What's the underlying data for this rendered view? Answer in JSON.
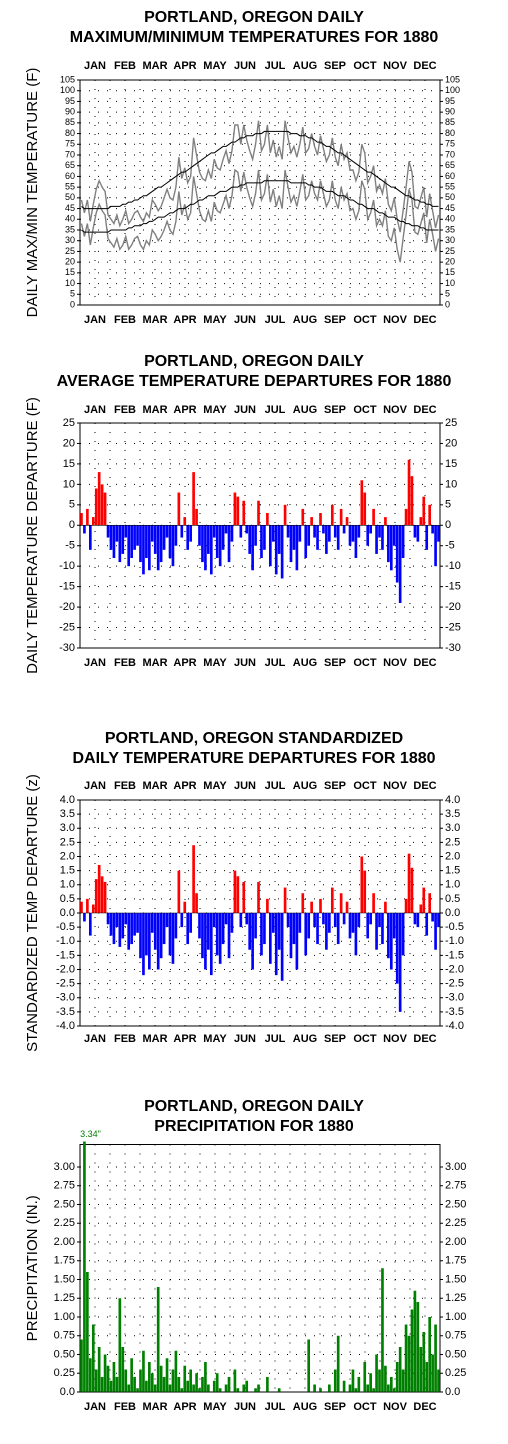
{
  "chart_data": [
    {
      "type": "line",
      "title": [
        "PORTLAND, OREGON DAILY",
        "MAXIMUM/MINIMUM TEMPERATURES FOR 1880"
      ],
      "y_label": "DAILY MAX/MIN TEMPERATURE (F)",
      "months": [
        "JAN",
        "FEB",
        "MAR",
        "APR",
        "MAY",
        "JUN",
        "JUL",
        "AUG",
        "SEP",
        "OCT",
        "NOV",
        "DEC"
      ],
      "month_rows": [
        "top",
        "bottom"
      ],
      "ylim": [
        0,
        105
      ],
      "yticks": [
        0,
        5,
        10,
        15,
        20,
        25,
        30,
        35,
        40,
        45,
        50,
        55,
        60,
        65,
        70,
        75,
        80,
        85,
        90,
        95,
        100,
        105
      ],
      "grid": true,
      "series": [
        {
          "color": "#808080",
          "values": [
            49,
            43,
            49,
            39,
            47,
            54,
            58,
            55,
            53,
            42,
            40,
            38,
            42,
            37,
            40,
            44,
            38,
            40,
            43,
            44,
            41,
            39,
            43,
            41,
            49,
            47,
            44,
            46,
            50,
            54,
            50,
            49,
            55,
            69,
            59,
            64,
            57,
            60,
            78,
            70,
            62,
            59,
            58,
            63,
            59,
            68,
            64,
            63,
            68,
            72,
            66,
            72,
            84,
            84,
            75,
            84,
            77,
            72,
            68,
            75,
            86,
            72,
            75,
            84,
            71,
            77,
            69,
            74,
            68,
            86,
            78,
            71,
            74,
            69,
            75,
            83,
            71,
            73,
            80,
            74,
            70,
            79,
            73,
            67,
            70,
            78,
            69,
            65,
            75,
            68,
            71,
            63,
            63,
            58,
            62,
            75,
            71,
            57,
            60,
            65,
            53,
            56,
            52,
            59,
            47,
            44,
            50,
            40,
            34,
            44,
            55,
            67,
            62,
            46,
            45,
            50,
            55,
            41,
            52,
            44,
            36,
            42
          ]
        },
        {
          "color": "#808080",
          "values": [
            38,
            32,
            38,
            28,
            36,
            43,
            47,
            44,
            42,
            31,
            29,
            27,
            31,
            26,
            28,
            32,
            26,
            28,
            31,
            32,
            28,
            26,
            30,
            28,
            35,
            33,
            30,
            32,
            35,
            39,
            35,
            33,
            39,
            53,
            42,
            47,
            40,
            43,
            60,
            52,
            44,
            40,
            39,
            44,
            39,
            48,
            44,
            43,
            47,
            51,
            45,
            51,
            63,
            62,
            53,
            62,
            55,
            50,
            46,
            52,
            63,
            49,
            52,
            61,
            48,
            54,
            46,
            51,
            45,
            63,
            55,
            48,
            51,
            46,
            53,
            61,
            49,
            51,
            58,
            52,
            49,
            58,
            52,
            46,
            49,
            58,
            49,
            45,
            55,
            49,
            52,
            44,
            45,
            40,
            44,
            58,
            54,
            40,
            43,
            49,
            37,
            40,
            37,
            44,
            32,
            30,
            36,
            26,
            20,
            31,
            42,
            54,
            49,
            34,
            33,
            38,
            43,
            29,
            40,
            33,
            25,
            31
          ]
        },
        {
          "color": "#000000",
          "values": [
            46,
            45,
            45,
            45,
            45,
            45,
            45,
            45,
            45,
            45,
            46,
            46,
            46,
            46,
            47,
            47,
            48,
            48,
            49,
            49,
            50,
            51,
            51,
            52,
            53,
            54,
            55,
            55,
            56,
            57,
            58,
            59,
            60,
            61,
            62,
            62,
            63,
            64,
            65,
            66,
            67,
            68,
            69,
            70,
            71,
            71,
            72,
            73,
            74,
            74,
            75,
            76,
            76,
            77,
            78,
            78,
            79,
            79,
            79,
            80,
            80,
            80,
            81,
            81,
            81,
            81,
            81,
            81,
            81,
            81,
            81,
            80,
            80,
            80,
            79,
            79,
            79,
            78,
            78,
            77,
            76,
            76,
            75,
            74,
            74,
            73,
            72,
            71,
            71,
            70,
            69,
            68,
            67,
            66,
            65,
            64,
            63,
            62,
            62,
            61,
            60,
            59,
            58,
            57,
            56,
            55,
            55,
            54,
            53,
            52,
            51,
            51,
            50,
            49,
            49,
            48,
            48,
            47,
            47,
            46,
            46,
            46
          ]
        },
        {
          "color": "#000000",
          "values": [
            35,
            34,
            34,
            34,
            34,
            34,
            34,
            34,
            34,
            34,
            35,
            35,
            35,
            35,
            35,
            35,
            36,
            36,
            37,
            37,
            37,
            38,
            38,
            39,
            39,
            40,
            41,
            41,
            41,
            42,
            43,
            43,
            44,
            45,
            45,
            45,
            46,
            47,
            47,
            48,
            49,
            49,
            50,
            51,
            51,
            51,
            52,
            53,
            53,
            53,
            54,
            55,
            55,
            55,
            56,
            56,
            57,
            57,
            57,
            57,
            57,
            57,
            58,
            58,
            58,
            58,
            58,
            58,
            58,
            58,
            58,
            57,
            57,
            57,
            57,
            57,
            57,
            56,
            56,
            55,
            55,
            55,
            54,
            53,
            53,
            53,
            52,
            51,
            51,
            51,
            50,
            49,
            49,
            48,
            47,
            47,
            46,
            45,
            45,
            45,
            44,
            43,
            43,
            42,
            41,
            41,
            41,
            40,
            39,
            39,
            38,
            38,
            37,
            37,
            37,
            36,
            36,
            35,
            35,
            35,
            35,
            35
          ]
        }
      ]
    },
    {
      "type": "bar",
      "title": [
        "PORTLAND, OREGON DAILY",
        "AVERAGE TEMPERATURE DEPARTURES FOR 1880"
      ],
      "y_label": "DAILY TEMPERATURE DEPARTURE (F)",
      "months": [
        "JAN",
        "FEB",
        "MAR",
        "APR",
        "MAY",
        "JUN",
        "JUL",
        "AUG",
        "SEP",
        "OCT",
        "NOV",
        "DEC"
      ],
      "month_rows": [
        "top",
        "bottom"
      ],
      "ylim": [
        -30,
        25
      ],
      "yticks": [
        25,
        20,
        15,
        10,
        5,
        0,
        -5,
        -10,
        -15,
        -20,
        -25,
        -30
      ],
      "grid": true,
      "colors": {
        "positive": "#ff0000",
        "negative": "#0000ff"
      },
      "values": [
        3,
        -2,
        4,
        -6,
        2,
        9,
        13,
        10,
        8,
        -3,
        -6,
        -8,
        -4,
        -9,
        -7,
        -3,
        -10,
        -8,
        -6,
        -5,
        -9,
        -12,
        -8,
        -11,
        -4,
        -7,
        -11,
        -9,
        -6,
        -3,
        -8,
        -10,
        -5,
        8,
        -3,
        2,
        -6,
        -4,
        13,
        4,
        -5,
        -9,
        -11,
        -7,
        -12,
        -3,
        -8,
        -10,
        -6,
        -2,
        -9,
        -4,
        8,
        7,
        -3,
        6,
        -2,
        -7,
        -11,
        -5,
        6,
        -8,
        -6,
        3,
        -10,
        -4,
        -12,
        -7,
        -13,
        5,
        -3,
        -9,
        -6,
        -11,
        -4,
        4,
        -8,
        -5,
        2,
        -3,
        -6,
        3,
        -2,
        -7,
        -4,
        5,
        -3,
        -6,
        4,
        -2,
        2,
        -5,
        -4,
        -8,
        -3,
        11,
        8,
        -5,
        -2,
        4,
        -7,
        -3,
        -6,
        2,
        -9,
        -11,
        -5,
        -14,
        -19,
        -8,
        4,
        16,
        12,
        -3,
        -4,
        2,
        7,
        -6,
        5,
        -2,
        -10,
        -4
      ]
    },
    {
      "type": "bar",
      "title": [
        "PORTLAND, OREGON STANDARDIZED",
        "DAILY TEMPERATURE DEPARTURES FOR 1880"
      ],
      "y_label": "STANDARDIZED TEMP DEPARTURE (z)",
      "months": [
        "JAN",
        "FEB",
        "MAR",
        "APR",
        "MAY",
        "JUN",
        "JUL",
        "AUG",
        "SEP",
        "OCT",
        "NOV",
        "DEC"
      ],
      "month_rows": [
        "top",
        "bottom"
      ],
      "ylim": [
        -4,
        4
      ],
      "yticks": [
        {
          "value": 4,
          "label": "4.0"
        },
        3.5,
        {
          "value": 3,
          "label": "3.0"
        },
        2.5,
        {
          "value": 2,
          "label": "2.0"
        },
        1.5,
        {
          "value": 1,
          "label": "1.0"
        },
        0.5,
        {
          "value": 0,
          "label": "0.0"
        },
        -0.5,
        {
          "value": -1,
          "label": "-1.0"
        },
        -1.5,
        {
          "value": -2,
          "label": "-2.0"
        },
        -2.5,
        {
          "value": -3,
          "label": "-3.0"
        },
        -3.5,
        {
          "value": -4,
          "label": "-4.0"
        }
      ],
      "grid": true,
      "colors": {
        "positive": "#ff0000",
        "negative": "#0000ff"
      },
      "values": [
        0.4,
        -0.3,
        0.5,
        -0.8,
        0.3,
        1.2,
        1.7,
        1.3,
        1.1,
        -0.4,
        -0.8,
        -1.1,
        -0.5,
        -1.2,
        -0.9,
        -0.4,
        -1.3,
        -1.1,
        -0.8,
        -0.7,
        -1.6,
        -2.2,
        -1.5,
        -2.0,
        -0.7,
        -1.3,
        -2.0,
        -1.6,
        -1.1,
        -0.5,
        -1.5,
        -1.8,
        -0.9,
        1.5,
        -0.5,
        0.4,
        -1.1,
        -0.7,
        2.4,
        0.7,
        -0.9,
        -1.6,
        -2.0,
        -1.3,
        -2.2,
        -0.5,
        -1.5,
        -1.8,
        -1.1,
        -0.4,
        -1.6,
        -0.7,
        1.5,
        1.3,
        -0.5,
        1.1,
        -0.4,
        -1.3,
        -2.0,
        -0.9,
        1.1,
        -1.5,
        -1.1,
        0.5,
        -1.8,
        -0.7,
        -2.2,
        -1.3,
        -2.4,
        0.9,
        -0.5,
        -1.6,
        -1.1,
        -2.0,
        -0.7,
        0.7,
        -1.5,
        -0.9,
        0.4,
        -0.5,
        -1.1,
        0.5,
        -0.4,
        -1.3,
        -0.7,
        0.9,
        -0.5,
        -1.1,
        0.7,
        -0.4,
        0.4,
        -0.9,
        -0.7,
        -1.5,
        -0.5,
        2.0,
        1.5,
        -0.9,
        -0.4,
        0.7,
        -1.3,
        -0.5,
        -1.1,
        0.4,
        -1.6,
        -2.0,
        -0.9,
        -2.5,
        -3.5,
        -1.5,
        0.5,
        2.1,
        1.6,
        -0.4,
        -0.5,
        0.3,
        0.9,
        -0.8,
        0.7,
        -0.3,
        -1.3,
        -0.5
      ]
    },
    {
      "type": "bar",
      "title": [
        "PORTLAND, OREGON DAILY",
        "PRECIPITATION FOR 1880"
      ],
      "y_label": "PRECIPITATION (IN.)",
      "months": [
        "JAN",
        "FEB",
        "MAR",
        "APR",
        "MAY",
        "JUN",
        "JUL",
        "AUG",
        "SEP",
        "OCT",
        "NOV",
        "DEC"
      ],
      "month_rows": [
        "bottom"
      ],
      "ylim": [
        0,
        3.3
      ],
      "yticks": [
        {
          "value": 3,
          "label": "3.00"
        },
        2.75,
        {
          "value": 2.5,
          "label": "2.50"
        },
        2.25,
        {
          "value": 2,
          "label": "2.00"
        },
        1.75,
        {
          "value": 1.5,
          "label": "1.50"
        },
        1.25,
        {
          "value": 1,
          "label": "1.00"
        },
        0.75,
        {
          "value": 0.5,
          "label": "0.50"
        },
        0.25,
        {
          "value": 0,
          "label": "0.0"
        }
      ],
      "grid": true,
      "color": "#008000",
      "values": [
        0.7,
        3.34,
        1.6,
        0.45,
        0.9,
        0.3,
        0.6,
        0.2,
        0.5,
        0.35,
        0.15,
        0.4,
        0.2,
        1.25,
        0.6,
        0.3,
        0.1,
        0.45,
        0.2,
        0.05,
        0.3,
        0.55,
        0.15,
        0.4,
        0.25,
        0.1,
        1.4,
        0.35,
        0.2,
        0.45,
        0.1,
        0.3,
        0.55,
        0.2,
        0.05,
        0.35,
        0.15,
        0.3,
        0.1,
        0.25,
        0.05,
        0.2,
        0.4,
        0.1,
        0,
        0.15,
        0.25,
        0.05,
        0,
        0.1,
        0.2,
        0,
        0.3,
        0.05,
        0,
        0.1,
        0.15,
        0,
        0,
        0.05,
        0.1,
        0,
        0,
        0.2,
        0,
        0,
        0,
        0.05,
        0,
        0,
        0,
        0,
        0,
        0,
        0,
        0,
        0,
        0.7,
        0,
        0.1,
        0,
        0.05,
        0,
        0,
        0.1,
        0,
        0.3,
        0.75,
        0,
        0.15,
        0,
        0.1,
        0.3,
        0.05,
        0.2,
        0,
        0.4,
        0.1,
        0.25,
        0.05,
        0.5,
        0.3,
        1.65,
        0.35,
        0.1,
        0.2,
        0.05,
        0.4,
        0.6,
        0.3,
        0.9,
        0.75,
        1.1,
        1.35,
        1.2,
        0.6,
        0.8,
        0.4,
        1.0,
        0.5,
        0.9,
        0.3
      ],
      "value_labels": [
        null,
        "3.34\"",
        null,
        null,
        null,
        null,
        null,
        null,
        null,
        null,
        null,
        null,
        null,
        null,
        null,
        null,
        null,
        null,
        null,
        null,
        null,
        null,
        null,
        null,
        null,
        null,
        null,
        null,
        null,
        null,
        null,
        null,
        null,
        null,
        null,
        null,
        null,
        null,
        null,
        null,
        null,
        null,
        null,
        null,
        null,
        null,
        null,
        null,
        null,
        null,
        null,
        null,
        null,
        null,
        null,
        null,
        null,
        null,
        null,
        null,
        null,
        null,
        null,
        null,
        null,
        null,
        null,
        null,
        null,
        null,
        null,
        null,
        null,
        null,
        null,
        null,
        null,
        null,
        null,
        null,
        null,
        null,
        null,
        null,
        null,
        null,
        null,
        null,
        null,
        null,
        null,
        null,
        null,
        null,
        null,
        null,
        null,
        null,
        null,
        null,
        null,
        null,
        null,
        null,
        null,
        null,
        null,
        null,
        null,
        null,
        null,
        null,
        null,
        null,
        null,
        null,
        null,
        null,
        null,
        null,
        null,
        null
      ]
    }
  ]
}
